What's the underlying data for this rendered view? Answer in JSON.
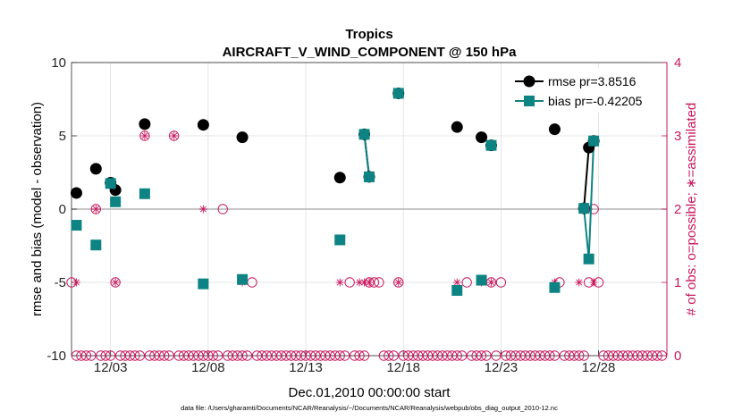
{
  "chart_data": {
    "type": "line",
    "title": "Tropics",
    "subtitle": "AIRCRAFT_V_WIND_COMPONENT @ 150 hPa",
    "xlabel": "Dec.01,2010 00:00:00 start",
    "ylabel": "rmse and bias (model - observation)",
    "y2label": "# of obs: o=possible; ∗=assimilated",
    "footnote": "data file: /Users/gharamti/Documents/NCAR/Reanalysis/~/Documents/NCAR/Reanalysis/webpub/obs_diag_output_2010-12.nc",
    "xlim": [
      1,
      31.5
    ],
    "ylim": [
      -10,
      10
    ],
    "y2lim": [
      0,
      4
    ],
    "xticks": [
      3,
      8,
      13,
      18,
      23,
      28
    ],
    "xtick_labels": [
      "12/03",
      "12/08",
      "12/13",
      "12/18",
      "12/23",
      "12/28"
    ],
    "yticks": [
      -10,
      -5,
      0,
      5,
      10
    ],
    "ytick_labels": [
      "-10",
      "-5",
      "0",
      "5",
      "10"
    ],
    "y2ticks": [
      0,
      1,
      2,
      3,
      4
    ],
    "y2tick_labels": [
      "0",
      "1",
      "2",
      "3",
      "4"
    ],
    "grid": true,
    "legend_position": "top-right",
    "colors": {
      "rmse": "#000000",
      "bias": "#0e8383",
      "obs": "#c8175e",
      "zero": "#b4b4b4",
      "grid": "#dedede"
    },
    "series": [
      {
        "name": "rmse pr=3.8516",
        "legend": "rmse pr=3.8516",
        "marker": "circle",
        "x": [
          1.25,
          2.25,
          3.0,
          3.25,
          4.75,
          7.75,
          9.75,
          14.75,
          16.0,
          16.25,
          17.75,
          20.75,
          22.0,
          22.5,
          25.75,
          27.25,
          27.5,
          27.75
        ],
        "values": [
          1.1,
          2.75,
          1.8,
          1.3,
          5.8,
          5.75,
          4.9,
          2.15,
          5.1,
          2.2,
          7.9,
          5.6,
          4.9,
          4.35,
          5.45,
          0.05,
          4.2,
          4.65
        ]
      },
      {
        "name": "bias pr=-0.42205",
        "legend": "bias pr=-0.42205",
        "marker": "square",
        "x": [
          1.25,
          2.25,
          3.0,
          3.25,
          4.75,
          7.75,
          9.75,
          14.75,
          16.0,
          16.25,
          17.75,
          20.75,
          22.0,
          22.5,
          25.75,
          27.25,
          27.5,
          27.75
        ],
        "values": [
          -1.1,
          -2.45,
          1.75,
          0.5,
          1.05,
          -5.1,
          -4.8,
          -2.1,
          5.1,
          2.2,
          7.9,
          -5.55,
          -4.85,
          4.35,
          -5.35,
          0.05,
          -3.4,
          4.65
        ]
      }
    ],
    "segments": [
      {
        "series": "rmse",
        "x": [
          16.0,
          16.25
        ]
      },
      {
        "series": "rmse",
        "x": [
          27.25,
          27.5,
          27.75
        ]
      },
      {
        "series": "bias",
        "x": [
          16.0,
          16.25
        ]
      },
      {
        "series": "bias",
        "x": [
          27.25,
          27.5,
          27.75
        ]
      }
    ],
    "obs_possible": {
      "x": [
        1.0,
        1.25,
        1.5,
        1.75,
        2.0,
        2.25,
        2.5,
        2.75,
        3.0,
        3.25,
        3.5,
        3.75,
        4.0,
        4.25,
        4.5,
        4.75,
        5.0,
        5.25,
        5.5,
        5.75,
        6.0,
        6.25,
        6.5,
        6.75,
        7.0,
        7.25,
        7.5,
        7.75,
        8.0,
        8.25,
        8.5,
        8.75,
        9.0,
        9.25,
        9.5,
        9.75,
        10.0,
        10.25,
        10.5,
        10.75,
        11.0,
        11.25,
        11.5,
        11.75,
        12.0,
        12.25,
        12.5,
        12.75,
        13.0,
        13.25,
        13.5,
        13.75,
        14.0,
        14.25,
        14.5,
        14.75,
        15.0,
        15.25,
        15.5,
        15.75,
        16.0,
        16.25,
        16.5,
        16.75,
        17.0,
        17.25,
        17.5,
        17.75,
        18.0,
        18.25,
        18.5,
        18.75,
        19.0,
        19.25,
        19.5,
        19.75,
        20.0,
        20.25,
        20.5,
        20.75,
        21.0,
        21.25,
        21.5,
        21.75,
        22.0,
        22.25,
        22.5,
        22.75,
        23.0,
        23.25,
        23.5,
        23.75,
        24.0,
        24.25,
        24.5,
        24.75,
        25.0,
        25.25,
        25.5,
        25.75,
        26.0,
        26.25,
        26.5,
        26.75,
        27.0,
        27.25,
        27.5,
        27.75,
        28.0,
        28.25,
        28.5,
        28.75,
        29.0,
        29.25,
        29.5,
        29.75,
        30.0,
        30.25,
        30.5,
        30.75,
        31.0,
        31.25
      ],
      "values": [
        1,
        0,
        0,
        0,
        0,
        2,
        0,
        0,
        0,
        1,
        0,
        0,
        0,
        0,
        0,
        3,
        0,
        0,
        0,
        0,
        0,
        3,
        0,
        0,
        0,
        0,
        0,
        0,
        0,
        0,
        0,
        2,
        0,
        0,
        0,
        0,
        0,
        1,
        0,
        0,
        0,
        0,
        0,
        0,
        0,
        0,
        0,
        0,
        0,
        0,
        0,
        0,
        0,
        0,
        0,
        0,
        0,
        1,
        0,
        0,
        0,
        1,
        1,
        1,
        0,
        0,
        0,
        1,
        0,
        0,
        0,
        0,
        0,
        0,
        0,
        0,
        0,
        0,
        0,
        0,
        0,
        1,
        0,
        0,
        0,
        0,
        1,
        0,
        1,
        0,
        0,
        0,
        0,
        0,
        0,
        0,
        0,
        0,
        0,
        0,
        1,
        0,
        0,
        0,
        0,
        0,
        1,
        2,
        1,
        0,
        0,
        0,
        0,
        0,
        0,
        0,
        0,
        0,
        0,
        0,
        0,
        0
      ]
    },
    "obs_assimilated": {
      "x": [
        1.25,
        2.25,
        3.25,
        4.75,
        6.25,
        7.75,
        9.75,
        14.75,
        15.75,
        16.0,
        16.25,
        17.75,
        20.75,
        22.0,
        22.5,
        25.75,
        27.0,
        27.25,
        27.5,
        27.75
      ],
      "values": [
        1,
        2,
        1,
        3,
        3,
        2,
        1,
        1,
        1,
        1,
        1,
        1,
        1,
        1,
        1,
        1,
        1,
        2,
        2,
        1
      ]
    }
  }
}
